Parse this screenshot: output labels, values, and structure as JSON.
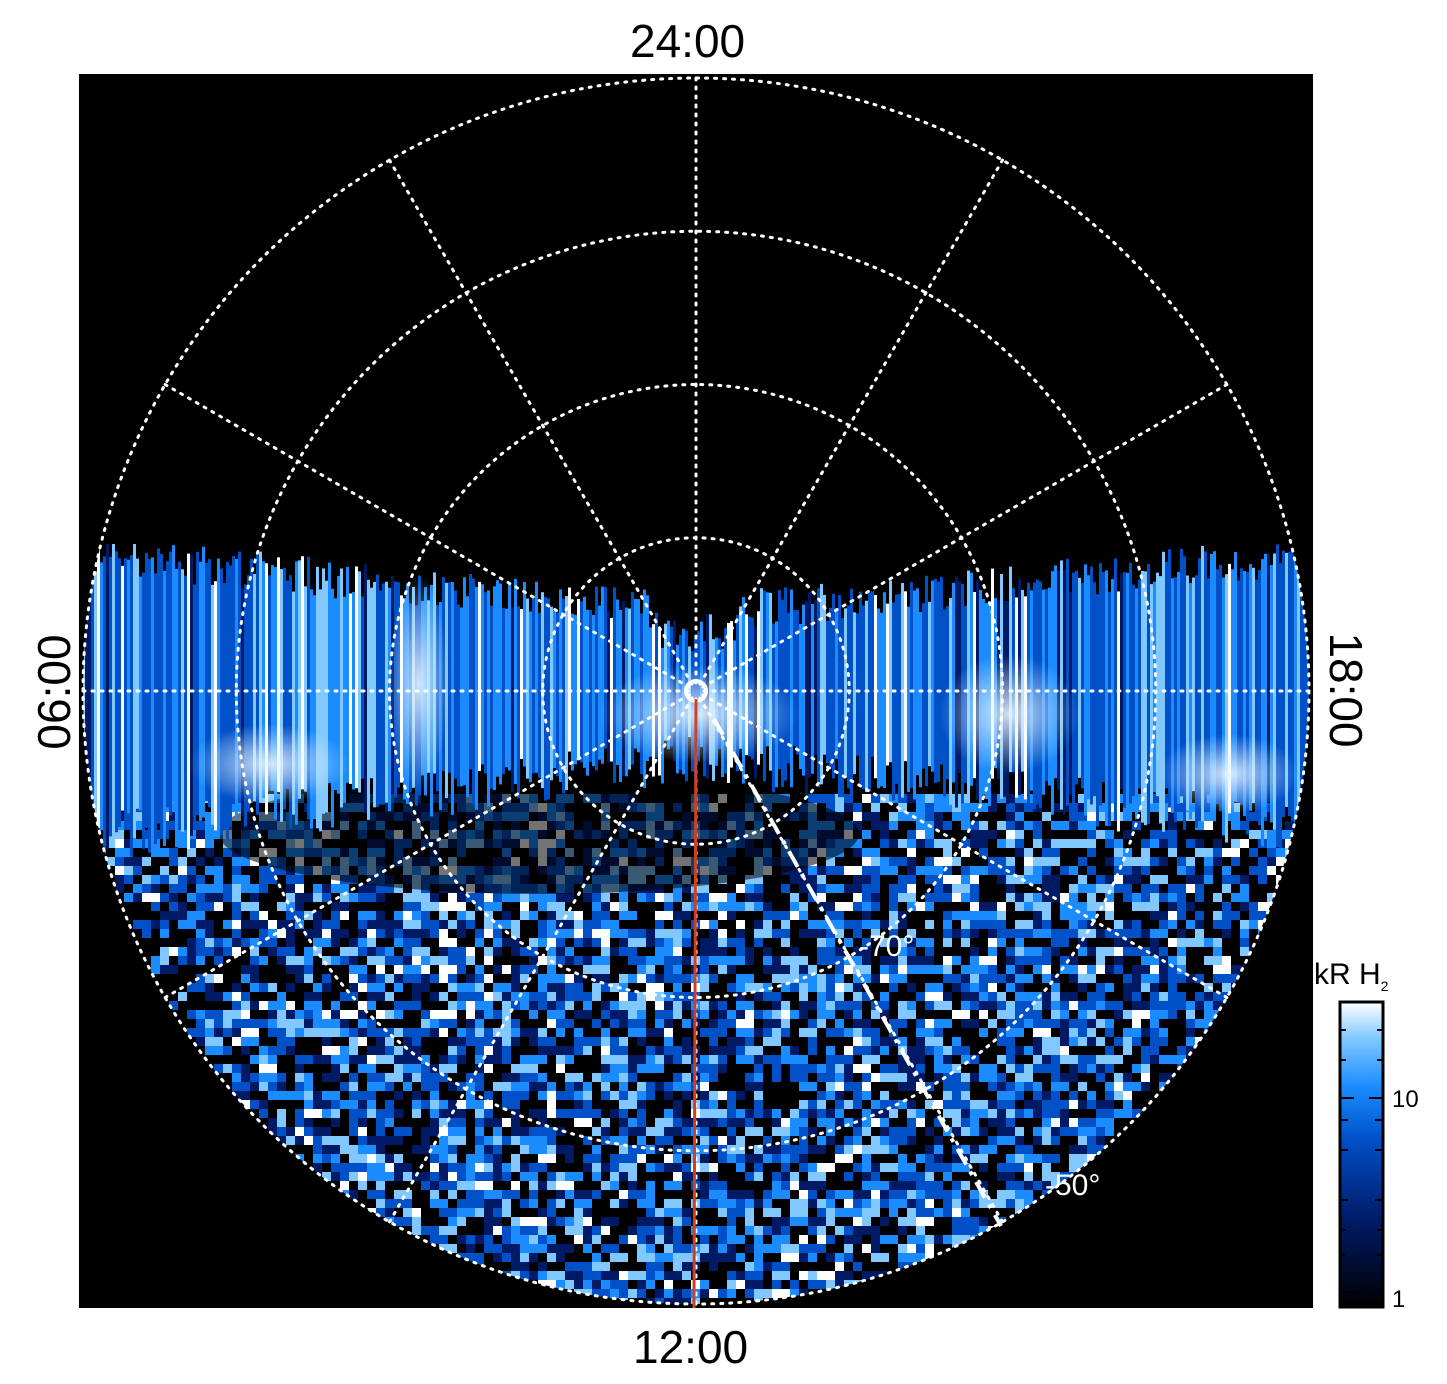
{
  "figure": {
    "local_time_labels": {
      "top": "24:00",
      "bottom": "12:00",
      "left": "06:00",
      "right": "18:00"
    },
    "latitude_labels": [
      "-70°",
      "-50°"
    ],
    "colorbar": {
      "title": "kR H",
      "title_subscript": "2",
      "ticks": [
        "10",
        "1"
      ],
      "scale": "log",
      "range": [
        1,
        20
      ],
      "colors": [
        "#000000",
        "#001a66",
        "#0050c8",
        "#1a8cff",
        "#80c8ff",
        "#ffffff"
      ]
    }
  },
  "chart_data": {
    "type": "heatmap",
    "projection": "polar (southern hemisphere, local time around, latitude radial)",
    "local_time_ticks": [
      "24:00",
      "06:00",
      "12:00",
      "18:00"
    ],
    "meridian_spacing_hours": 2,
    "latitude_circles_deg": [
      -80,
      -70,
      -60,
      -50
    ],
    "annotated_latitudes": [
      "-70°",
      "-50°"
    ],
    "intensity_unit": "kR H2",
    "intensity_range": [
      1,
      20
    ],
    "colormap": "black-blue-white",
    "overlays": [
      {
        "style": "solid",
        "color": "#d04020",
        "description": "noon meridian line"
      },
      {
        "style": "dash-dot",
        "color": "#ffffff",
        "description": "dash-dot line toward -50° at ~14 LT"
      }
    ],
    "grid": true,
    "legend": "colorbar right"
  }
}
